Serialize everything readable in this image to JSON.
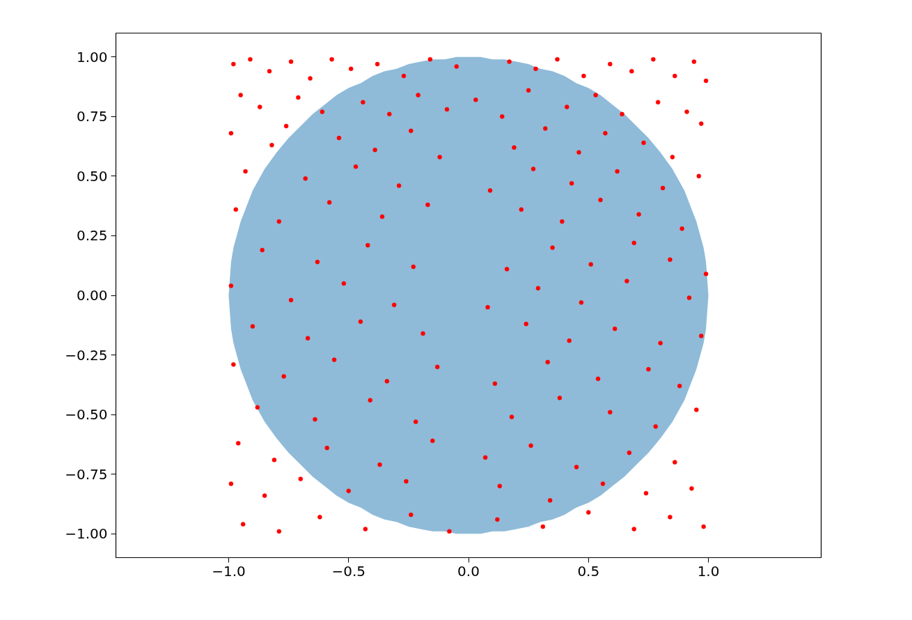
{
  "chart_data": {
    "type": "scatter",
    "grid": false,
    "xlim": [
      -1.47,
      1.47
    ],
    "ylim": [
      -1.1,
      1.1
    ],
    "xticks": [
      {
        "value": -1.0,
        "label": "−1.0"
      },
      {
        "value": -0.5,
        "label": "−0.5"
      },
      {
        "value": 0,
        "label": "0.0"
      },
      {
        "value": 0.5,
        "label": "0.5"
      },
      {
        "value": 1.0,
        "label": "1.0"
      }
    ],
    "yticks": [
      {
        "value": -1.0,
        "label": "−1.00"
      },
      {
        "value": -0.75,
        "label": "−0.75"
      },
      {
        "value": -0.5,
        "label": "−0.50"
      },
      {
        "value": -0.25,
        "label": "−0.25"
      },
      {
        "value": 0,
        "label": "0.00"
      },
      {
        "value": 0.25,
        "label": "0.25"
      },
      {
        "value": 0.5,
        "label": "0.50"
      },
      {
        "value": 0.75,
        "label": "0.75"
      },
      {
        "value": 1.0,
        "label": "1.00"
      }
    ],
    "series": [
      {
        "type": "area",
        "color": "#8fbbd9",
        "x": [
          -1,
          -0.99,
          -0.98,
          -0.95,
          -0.9,
          -0.85,
          -0.8,
          -0.75,
          -0.7,
          -0.65,
          -0.6,
          -0.55,
          -0.5,
          -0.45,
          -0.4,
          -0.35,
          -0.3,
          -0.25,
          -0.2,
          -0.15,
          -0.1,
          -0.05,
          0,
          0.05,
          0.1,
          0.15,
          0.2,
          0.25,
          0.3,
          0.35,
          0.4,
          0.45,
          0.5,
          0.55,
          0.6,
          0.65,
          0.7,
          0.75,
          0.8,
          0.85,
          0.9,
          0.95,
          0.98,
          0.99,
          1
        ],
        "values": [
          0,
          0.14,
          0.2,
          0.31,
          0.44,
          0.53,
          0.6,
          0.66,
          0.71,
          0.76,
          0.8,
          0.84,
          0.87,
          0.89,
          0.92,
          0.94,
          0.95,
          0.97,
          0.98,
          0.99,
          0.99,
          1.0,
          1.0,
          1.0,
          0.99,
          0.99,
          0.98,
          0.97,
          0.95,
          0.94,
          0.92,
          0.89,
          0.87,
          0.84,
          0.8,
          0.76,
          0.71,
          0.66,
          0.6,
          0.53,
          0.44,
          0.31,
          0.2,
          0.14,
          0
        ]
      },
      {
        "type": "area",
        "color": "#8fbbd9",
        "x": [
          -1,
          -0.99,
          -0.98,
          -0.95,
          -0.9,
          -0.85,
          -0.8,
          -0.75,
          -0.7,
          -0.65,
          -0.6,
          -0.55,
          -0.5,
          -0.45,
          -0.4,
          -0.35,
          -0.3,
          -0.25,
          -0.2,
          -0.15,
          -0.1,
          -0.05,
          0,
          0.05,
          0.1,
          0.15,
          0.2,
          0.25,
          0.3,
          0.35,
          0.4,
          0.45,
          0.5,
          0.55,
          0.6,
          0.65,
          0.7,
          0.75,
          0.8,
          0.85,
          0.9,
          0.95,
          0.98,
          0.99,
          1
        ],
        "values": [
          0,
          -0.14,
          -0.2,
          -0.31,
          -0.44,
          -0.53,
          -0.6,
          -0.66,
          -0.71,
          -0.76,
          -0.8,
          -0.84,
          -0.87,
          -0.89,
          -0.92,
          -0.94,
          -0.95,
          -0.97,
          -0.98,
          -0.99,
          -0.99,
          -1.0,
          -1.0,
          -1.0,
          -0.99,
          -0.99,
          -0.98,
          -0.97,
          -0.95,
          -0.94,
          -0.92,
          -0.89,
          -0.87,
          -0.84,
          -0.8,
          -0.76,
          -0.71,
          -0.66,
          -0.6,
          -0.53,
          -0.44,
          -0.31,
          -0.2,
          -0.14,
          0
        ]
      },
      {
        "color": "#ff0000",
        "marker": "circle",
        "x": [
          -0.98,
          -0.91,
          -0.83,
          -0.74,
          -0.66,
          -0.57,
          -0.49,
          -0.38,
          -0.27,
          -0.16,
          -0.05,
          0.17,
          0.28,
          0.37,
          0.48,
          0.59,
          0.68,
          0.77,
          0.86,
          0.94,
          0.99,
          -0.95,
          -0.87,
          -0.71,
          -0.61,
          -0.44,
          -0.33,
          -0.21,
          -0.09,
          0.03,
          0.14,
          0.25,
          0.41,
          0.53,
          0.64,
          0.79,
          0.91,
          0.97,
          -0.99,
          -0.82,
          -0.76,
          -0.54,
          -0.39,
          -0.24,
          -0.12,
          0.19,
          0.32,
          0.46,
          0.57,
          0.73,
          0.85,
          -0.93,
          -0.68,
          -0.47,
          -0.29,
          0.09,
          0.27,
          0.43,
          0.62,
          0.81,
          0.96,
          -0.97,
          -0.79,
          -0.58,
          -0.36,
          -0.17,
          0.22,
          0.39,
          0.55,
          0.71,
          0.89,
          -0.86,
          -0.63,
          -0.42,
          -0.23,
          0.16,
          0.35,
          0.51,
          0.69,
          0.84,
          0.99,
          -0.99,
          -0.74,
          -0.52,
          -0.31,
          0.08,
          0.29,
          0.47,
          0.66,
          0.92,
          -0.9,
          -0.67,
          -0.45,
          -0.19,
          0.24,
          0.42,
          0.61,
          0.8,
          0.97,
          -0.98,
          -0.77,
          -0.56,
          -0.34,
          -0.13,
          0.11,
          0.33,
          0.54,
          0.75,
          0.88,
          -0.88,
          -0.64,
          -0.41,
          -0.22,
          0.18,
          0.38,
          0.59,
          0.78,
          0.95,
          -0.96,
          -0.81,
          -0.59,
          -0.37,
          -0.15,
          0.07,
          0.26,
          0.45,
          0.67,
          0.86,
          -0.99,
          -0.85,
          -0.7,
          -0.5,
          -0.26,
          0.13,
          0.34,
          0.56,
          0.74,
          0.93,
          -0.94,
          -0.79,
          -0.62,
          -0.43,
          -0.24,
          -0.08,
          0.12,
          0.31,
          0.5,
          0.69,
          0.84,
          0.98
        ],
        "values": [
          0.97,
          0.99,
          0.94,
          0.98,
          0.91,
          0.99,
          0.95,
          0.97,
          0.92,
          0.99,
          0.96,
          0.98,
          0.95,
          0.99,
          0.92,
          0.97,
          0.94,
          0.99,
          0.92,
          0.98,
          0.9,
          0.84,
          0.79,
          0.83,
          0.77,
          0.81,
          0.76,
          0.84,
          0.78,
          0.82,
          0.75,
          0.86,
          0.79,
          0.84,
          0.76,
          0.81,
          0.77,
          0.72,
          0.68,
          0.63,
          0.71,
          0.66,
          0.61,
          0.69,
          0.58,
          0.62,
          0.7,
          0.6,
          0.68,
          0.64,
          0.58,
          0.52,
          0.49,
          0.54,
          0.46,
          0.44,
          0.53,
          0.47,
          0.52,
          0.45,
          0.5,
          0.36,
          0.31,
          0.39,
          0.33,
          0.38,
          0.36,
          0.31,
          0.4,
          0.34,
          0.28,
          0.19,
          0.14,
          0.21,
          0.12,
          0.11,
          0.2,
          0.13,
          0.22,
          0.15,
          0.09,
          0.04,
          -0.02,
          0.05,
          -0.04,
          -0.05,
          0.03,
          -0.03,
          0.06,
          -0.01,
          -0.13,
          -0.18,
          -0.11,
          -0.16,
          -0.12,
          -0.19,
          -0.14,
          -0.2,
          -0.17,
          -0.29,
          -0.34,
          -0.27,
          -0.36,
          -0.3,
          -0.37,
          -0.28,
          -0.35,
          -0.31,
          -0.38,
          -0.47,
          -0.52,
          -0.44,
          -0.53,
          -0.51,
          -0.43,
          -0.49,
          -0.55,
          -0.48,
          -0.62,
          -0.69,
          -0.64,
          -0.71,
          -0.61,
          -0.68,
          -0.63,
          -0.72,
          -0.66,
          -0.7,
          -0.79,
          -0.84,
          -0.77,
          -0.82,
          -0.78,
          -0.8,
          -0.86,
          -0.79,
          -0.83,
          -0.81,
          -0.96,
          -0.99,
          -0.93,
          -0.98,
          -0.92,
          -0.99,
          -0.94,
          -0.97,
          -0.91,
          -0.98,
          -0.93,
          -0.97
        ]
      }
    ]
  }
}
